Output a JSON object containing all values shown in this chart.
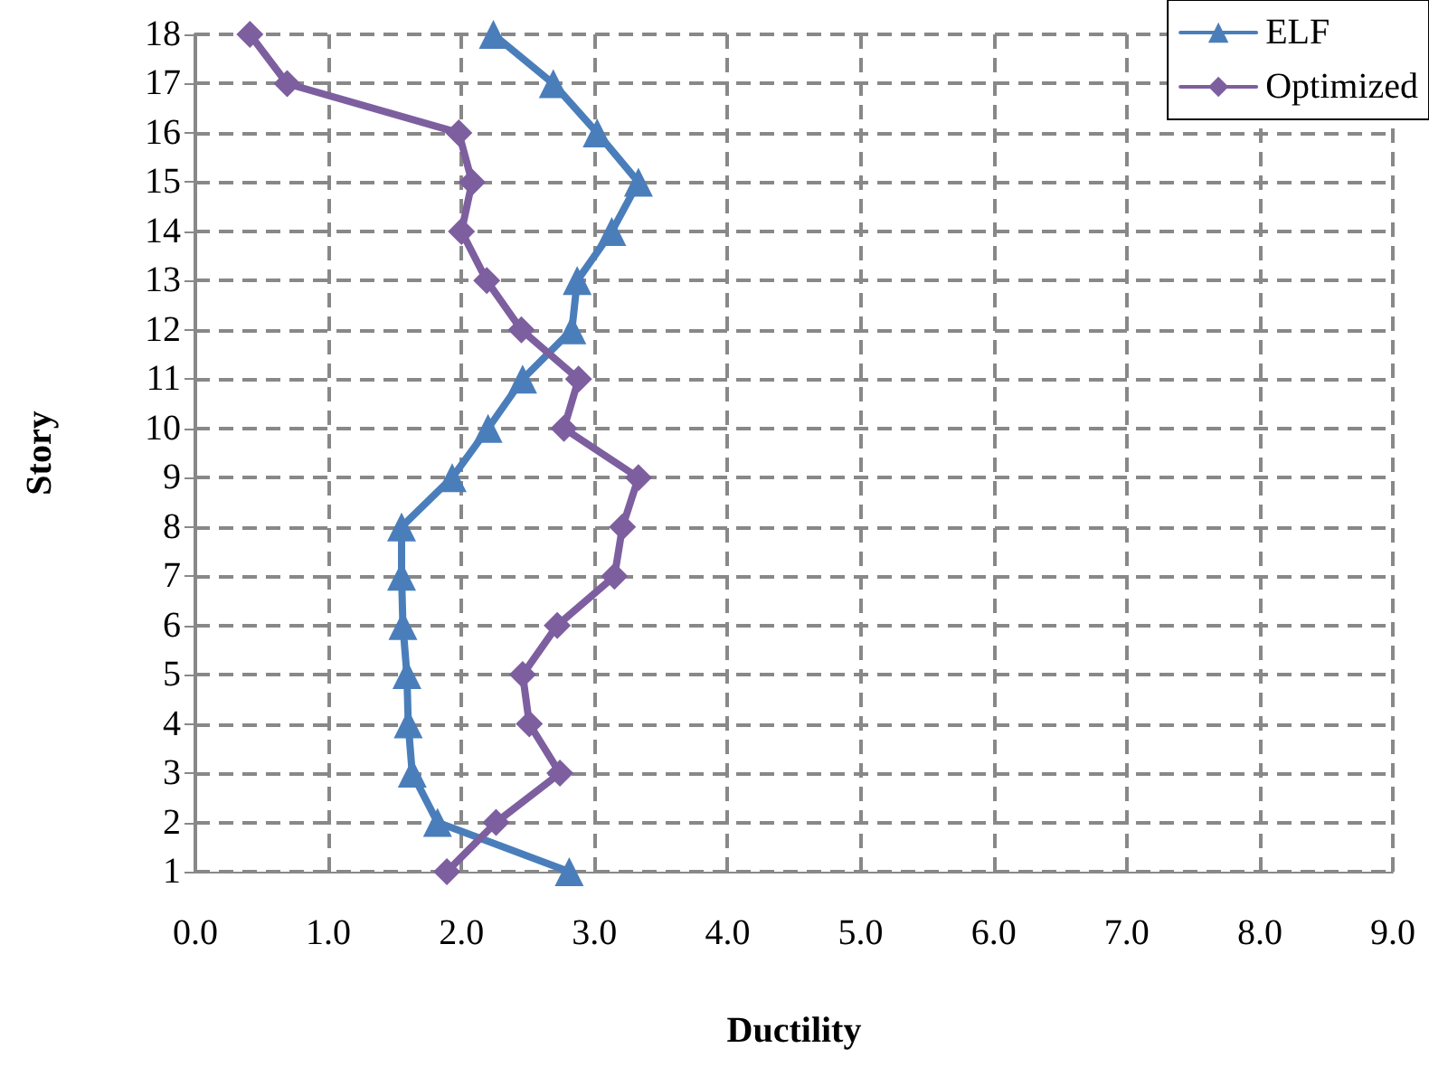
{
  "chart_data": {
    "type": "line",
    "xlabel": "Ductility",
    "ylabel": "Story",
    "xlim": [
      0,
      9
    ],
    "xticks": [
      {
        "value": 0,
        "label": "0.0"
      },
      {
        "value": 1,
        "label": "1.0"
      },
      {
        "value": 2,
        "label": "2.0"
      },
      {
        "value": 3,
        "label": "3.0"
      },
      {
        "value": 4,
        "label": "4.0"
      },
      {
        "value": 5,
        "label": "5.0"
      },
      {
        "value": 6,
        "label": "6.0"
      },
      {
        "value": 7,
        "label": "7.0"
      },
      {
        "value": 8,
        "label": "8.0"
      },
      {
        "value": 9,
        "label": "9.0"
      }
    ],
    "ylim": [
      1,
      18
    ],
    "yticks": [
      1,
      2,
      3,
      4,
      5,
      6,
      7,
      8,
      9,
      10,
      11,
      12,
      13,
      14,
      15,
      16,
      17,
      18
    ],
    "series": [
      {
        "name": "ELF",
        "color": "#4a7ebb",
        "marker": "triangle",
        "x": [
          2.81,
          1.82,
          1.63,
          1.6,
          1.59,
          1.56,
          1.55,
          1.55,
          1.93,
          2.2,
          2.46,
          2.83,
          2.87,
          3.13,
          3.33,
          3.02,
          2.69,
          2.24
        ],
        "values": [
          1,
          2,
          3,
          4,
          5,
          6,
          7,
          8,
          9,
          10,
          11,
          12,
          13,
          14,
          15,
          16,
          17,
          18
        ]
      },
      {
        "name": "Optimized",
        "color": "#7d5fa0",
        "marker": "diamond",
        "x": [
          1.89,
          2.26,
          2.74,
          2.51,
          2.46,
          2.72,
          3.15,
          3.21,
          3.33,
          2.77,
          2.88,
          2.45,
          2.19,
          2.0,
          2.08,
          1.98,
          0.69,
          0.41
        ],
        "values": [
          1,
          2,
          3,
          4,
          5,
          6,
          7,
          8,
          9,
          10,
          11,
          12,
          13,
          14,
          15,
          16,
          17,
          18
        ]
      }
    ],
    "grid": true,
    "legend": "top right",
    "line_style": "solid"
  }
}
